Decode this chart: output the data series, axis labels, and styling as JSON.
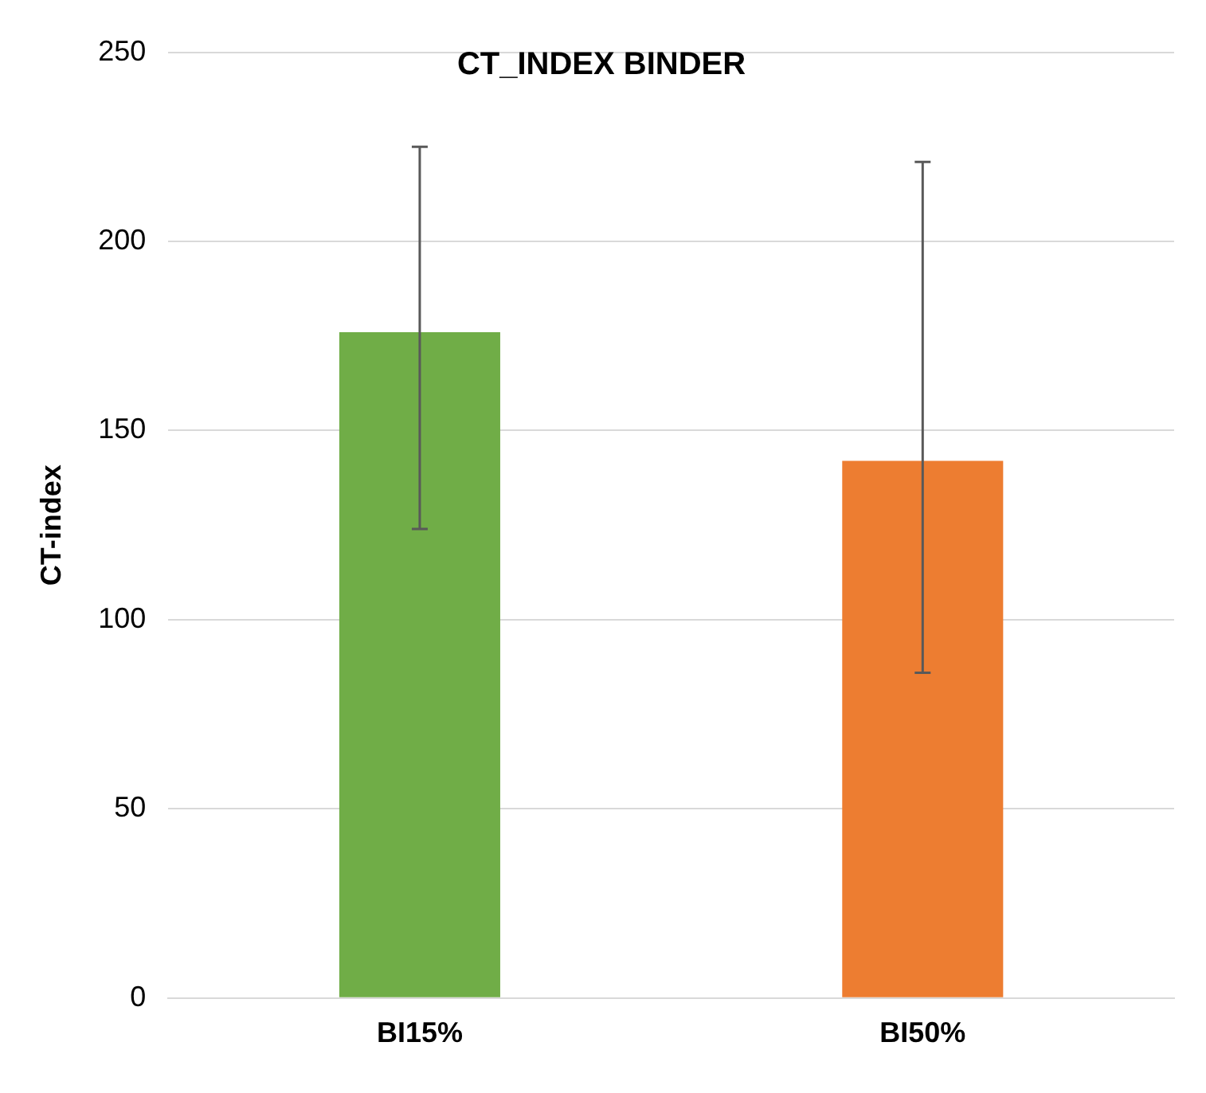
{
  "chart_data": {
    "type": "bar",
    "title": "CT_INDEX BINDER",
    "ylabel": "CT-index",
    "categories": [
      "BI15%",
      "BI50%"
    ],
    "values": [
      176,
      142
    ],
    "colors": [
      "#70ad47",
      "#ed7d31"
    ],
    "errors": [
      [
        124,
        225
      ],
      [
        86,
        221
      ]
    ],
    "ylim": [
      0,
      250
    ],
    "yticks": [
      0,
      50,
      100,
      150,
      200,
      250
    ],
    "grid": "y",
    "legend": false
  }
}
